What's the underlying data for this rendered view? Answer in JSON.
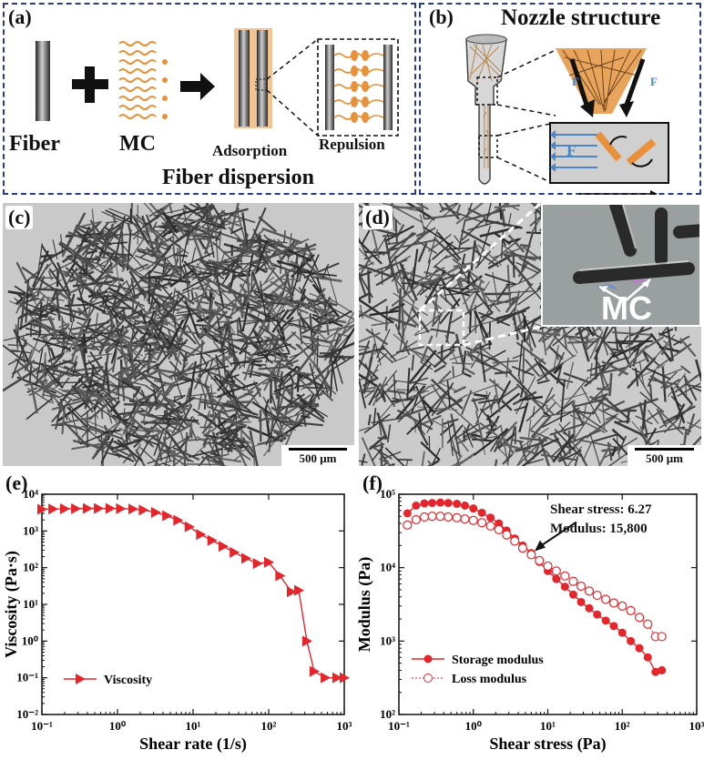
{
  "panel_a": {
    "label": "(a)",
    "fiber_label": "Fiber",
    "mc_label": "MC",
    "adsorption_label": "Adsorption",
    "repulsion_label": "Repulsion",
    "caption": "Fiber dispersion"
  },
  "panel_b": {
    "label": "(b)",
    "title": "Nozzle structure",
    "force_label_1": "F",
    "force_label_2": "F",
    "force_label_3": "F"
  },
  "panel_c": {
    "label": "(c)",
    "scale": "500 μm"
  },
  "panel_d": {
    "label": "(d)",
    "scale": "500 μm",
    "inset_label": "MC"
  },
  "panel_e": {
    "label": "(e)"
  },
  "panel_f": {
    "label": "(f)",
    "annotation_line1": "Shear stress: 6.27",
    "annotation_line2": "Modulus: 15,800"
  },
  "colors": {
    "frame": "#2b3a8f",
    "series_red": "#e4262c",
    "arrow_blue": "#4a86c8",
    "mc_orange": "#e8913a"
  },
  "chart_data": [
    {
      "type": "scatter",
      "panel": "(e)",
      "xlabel": "Shear  rate (1/s)",
      "ylabel": "Viscosity (Pa·s)",
      "xscale": "log",
      "yscale": "log",
      "xlim": [
        0.1,
        1000
      ],
      "ylim": [
        0.01,
        10000
      ],
      "x_ticks": [
        "10⁻¹",
        "10⁰",
        "10¹",
        "10²",
        "10³"
      ],
      "y_ticks": [
        "10⁻²",
        "10⁻¹",
        "10⁰",
        "10¹",
        "10²",
        "10³",
        "10⁴"
      ],
      "legend_position": "bottom-left",
      "series": [
        {
          "name": "Viscosity",
          "marker": "right-triangle",
          "x": [
            0.1,
            0.14,
            0.2,
            0.28,
            0.4,
            0.56,
            0.8,
            1.1,
            1.6,
            2.2,
            3.2,
            4.5,
            6.3,
            8.9,
            12.6,
            17.8,
            25,
            35,
            50,
            71,
            100,
            141,
            200,
            250,
            320,
            400,
            560,
            800,
            1000
          ],
          "y": [
            3900,
            3950,
            4000,
            4050,
            4100,
            4100,
            4100,
            4050,
            3950,
            3700,
            3200,
            2600,
            1950,
            1300,
            800,
            550,
            380,
            260,
            180,
            130,
            140,
            60,
            22,
            24,
            1.0,
            0.15,
            0.1,
            0.1,
            0.1
          ]
        }
      ]
    },
    {
      "type": "scatter",
      "panel": "(f)",
      "xlabel": "Shear  stress (Pa)",
      "ylabel": "Modulus (Pa)",
      "xscale": "log",
      "yscale": "log",
      "xlim": [
        0.1,
        1000
      ],
      "ylim": [
        100,
        100000
      ],
      "x_ticks": [
        "10⁻¹",
        "10⁰",
        "10¹",
        "10²",
        "10³"
      ],
      "y_ticks": [
        "10²",
        "10³",
        "10⁴",
        "10⁵"
      ],
      "legend_position": "bottom-left",
      "series": [
        {
          "name": "Storage modulus",
          "marker": "filled-circle",
          "x": [
            0.13,
            0.17,
            0.22,
            0.28,
            0.36,
            0.46,
            0.6,
            0.77,
            1.0,
            1.3,
            1.7,
            2.2,
            2.8,
            3.6,
            4.6,
            6.0,
            7.7,
            10,
            13,
            17,
            22,
            28,
            36,
            46,
            60,
            77,
            100,
            130,
            170,
            220,
            280,
            340
          ],
          "y": [
            55000,
            70000,
            75000,
            76000,
            77000,
            76000,
            74000,
            70000,
            64000,
            56000,
            48000,
            40000,
            32000,
            25000,
            20000,
            15800,
            12000,
            9000,
            7000,
            5500,
            4300,
            3400,
            2800,
            2300,
            1900,
            1600,
            1300,
            1000,
            800,
            600,
            380,
            400
          ]
        },
        {
          "name": "Loss modulus",
          "marker": "open-circle",
          "x": [
            0.13,
            0.17,
            0.22,
            0.28,
            0.36,
            0.46,
            0.6,
            0.77,
            1.0,
            1.3,
            1.7,
            2.2,
            2.8,
            3.6,
            4.6,
            6.0,
            7.7,
            10,
            13,
            17,
            22,
            28,
            36,
            46,
            60,
            77,
            100,
            130,
            170,
            220,
            280,
            340
          ],
          "y": [
            38000,
            45000,
            49000,
            50000,
            50000,
            49000,
            48000,
            46000,
            44000,
            41000,
            37000,
            33000,
            28000,
            23000,
            18500,
            15000,
            12500,
            10500,
            9000,
            7700,
            6500,
            5600,
            4800,
            4200,
            3700,
            3300,
            3000,
            2600,
            2100,
            1700,
            1150,
            1150
          ]
        }
      ]
    }
  ]
}
